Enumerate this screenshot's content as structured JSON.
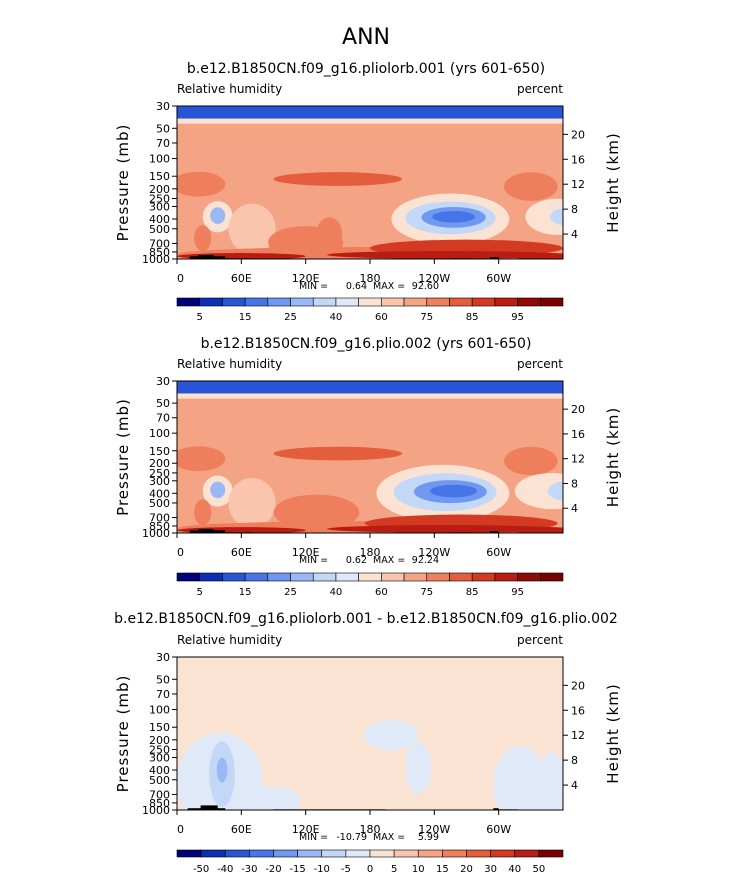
{
  "figure": {
    "title": "ANN"
  },
  "chart_data": [
    {
      "type": "heatmap",
      "title": "b.e12.B1850CN.f09_g16.pliolorb.001 (yrs 601-650)",
      "left_subtitle": "Relative humidity",
      "right_subtitle": "percent",
      "xlabel": "",
      "ylabel": "Pressure (mb)",
      "ylabel_right": "Height (km)",
      "x_ticks": [
        "0",
        "60E",
        "120E",
        "180",
        "120W",
        "60W"
      ],
      "x_tick_values": [
        0,
        60,
        120,
        180,
        240,
        300
      ],
      "xlim": [
        0,
        360
      ],
      "y_ticks": [
        "30",
        "50",
        "70",
        "100",
        "150",
        "200",
        "250",
        "300",
        "400",
        "500",
        "700",
        "850",
        "1000"
      ],
      "y_tick_values": [
        30,
        50,
        70,
        100,
        150,
        200,
        250,
        300,
        400,
        500,
        700,
        850,
        1000
      ],
      "ylim": [
        30,
        1000
      ],
      "height_ticks": [
        "20",
        "16",
        "12",
        "8",
        "4"
      ],
      "height_tick_values": [
        20,
        16,
        12,
        8,
        4
      ],
      "min_label": "MIN =",
      "min_value": "0.64",
      "max_label": "MAX =",
      "max_value": "92.60",
      "colorbar_labels": [
        "5",
        "15",
        "25",
        "40",
        "60",
        "75",
        "85",
        "95"
      ],
      "colorbar_levels": [
        3,
        5,
        10,
        15,
        20,
        25,
        30,
        40,
        50,
        60,
        70,
        75,
        80,
        85,
        90,
        95
      ],
      "colorbar_colors": [
        "#00007a",
        "#0d2fb4",
        "#2855d6",
        "#4775e8",
        "#6f99f0",
        "#9ab8f5",
        "#c3d7f7",
        "#dfe9f8",
        "#fbe3d4",
        "#f9c6ad",
        "#f4a384",
        "#ef7e5d",
        "#e45d3d",
        "#d43a22",
        "#b81c12",
        "#8c0a08",
        "#7a0000"
      ],
      "features": [
        {
          "kind": "fill",
          "value": 60,
          "lon": 180,
          "p": 500,
          "rlon": 250,
          "rp": 700
        },
        {
          "kind": "blob",
          "value": 65,
          "lon": 150,
          "p": 200,
          "rlon": 110,
          "rp": 60
        },
        {
          "kind": "blob",
          "value": 75,
          "lon": 150,
          "p": 160,
          "rlon": 60,
          "rp": 25
        },
        {
          "kind": "blob",
          "value": 70,
          "lon": 20,
          "p": 180,
          "rlon": 25,
          "rp": 50
        },
        {
          "kind": "blob",
          "value": 70,
          "lon": 330,
          "p": 190,
          "rlon": 25,
          "rp": 60
        },
        {
          "kind": "blob",
          "value": 40,
          "lon": 255,
          "p": 400,
          "rlon": 55,
          "rp": 210
        },
        {
          "kind": "blob",
          "value": 25,
          "lon": 255,
          "p": 390,
          "rlon": 42,
          "rp": 140
        },
        {
          "kind": "blob",
          "value": 15,
          "lon": 258,
          "p": 385,
          "rlon": 30,
          "rp": 90
        },
        {
          "kind": "blob",
          "value": 10,
          "lon": 258,
          "p": 380,
          "rlon": 20,
          "rp": 50
        },
        {
          "kind": "blob",
          "value": 40,
          "lon": 38,
          "p": 380,
          "rlon": 14,
          "rp": 130
        },
        {
          "kind": "blob",
          "value": 20,
          "lon": 38,
          "p": 370,
          "rlon": 7,
          "rp": 70
        },
        {
          "kind": "blob",
          "value": 40,
          "lon": 355,
          "p": 380,
          "rlon": 30,
          "rp": 150
        },
        {
          "kind": "blob",
          "value": 25,
          "lon": 360,
          "p": 380,
          "rlon": 12,
          "rp": 70
        },
        {
          "kind": "blob",
          "value": 50,
          "lon": 70,
          "p": 500,
          "rlon": 22,
          "rp": 260
        },
        {
          "kind": "blob",
          "value": 70,
          "lon": 120,
          "p": 680,
          "rlon": 35,
          "rp": 240
        },
        {
          "kind": "blob",
          "value": 70,
          "lon": 142,
          "p": 560,
          "rlon": 12,
          "rp": 200
        },
        {
          "kind": "blob",
          "value": 70,
          "lon": 24,
          "p": 620,
          "rlon": 8,
          "rp": 180
        },
        {
          "kind": "blob",
          "value": 70,
          "lon": 170,
          "p": 900,
          "rlon": 170,
          "rp": 150
        },
        {
          "kind": "blob",
          "value": 80,
          "lon": 270,
          "p": 780,
          "rlon": 90,
          "rp": 150
        },
        {
          "kind": "blob",
          "value": 85,
          "lon": 60,
          "p": 940,
          "rlon": 60,
          "rp": 70
        },
        {
          "kind": "blob",
          "value": 85,
          "lon": 250,
          "p": 910,
          "rlon": 110,
          "rp": 80
        },
        {
          "kind": "blob",
          "value": 85,
          "lon": 340,
          "p": 935,
          "rlon": 30,
          "rp": 70
        },
        {
          "kind": "band",
          "value": 40,
          "p0": 30,
          "p1": 45
        },
        {
          "kind": "band",
          "value": 5,
          "p0": 30,
          "p1": 40
        }
      ],
      "topography": [
        {
          "lon0": 12,
          "lon1": 45,
          "p": 940
        },
        {
          "lon0": 20,
          "lon1": 34,
          "p": 910
        },
        {
          "lon0": 45,
          "lon1": 70,
          "p": 985
        },
        {
          "lon0": 90,
          "lon1": 195,
          "p": 990
        },
        {
          "lon0": 255,
          "lon1": 275,
          "p": 985
        },
        {
          "lon0": 292,
          "lon1": 300,
          "p": 960
        },
        {
          "lon0": 300,
          "lon1": 318,
          "p": 990
        }
      ]
    },
    {
      "type": "heatmap",
      "title": "b.e12.B1850CN.f09_g16.plio.002 (yrs 601-650)",
      "left_subtitle": "Relative humidity",
      "right_subtitle": "percent",
      "xlabel": "",
      "ylabel": "Pressure (mb)",
      "ylabel_right": "Height (km)",
      "x_ticks": [
        "0",
        "60E",
        "120E",
        "180",
        "120W",
        "60W"
      ],
      "x_tick_values": [
        0,
        60,
        120,
        180,
        240,
        300
      ],
      "xlim": [
        0,
        360
      ],
      "y_ticks": [
        "30",
        "50",
        "70",
        "100",
        "150",
        "200",
        "250",
        "300",
        "400",
        "500",
        "700",
        "850",
        "1000"
      ],
      "y_tick_values": [
        30,
        50,
        70,
        100,
        150,
        200,
        250,
        300,
        400,
        500,
        700,
        850,
        1000
      ],
      "ylim": [
        30,
        1000
      ],
      "height_ticks": [
        "20",
        "16",
        "12",
        "8",
        "4"
      ],
      "height_tick_values": [
        20,
        16,
        12,
        8,
        4
      ],
      "min_label": "MIN =",
      "min_value": "0.62",
      "max_label": "MAX =",
      "max_value": "92.24",
      "colorbar_labels": [
        "5",
        "15",
        "25",
        "40",
        "60",
        "75",
        "85",
        "95"
      ],
      "colorbar_levels": [
        3,
        5,
        10,
        15,
        20,
        25,
        30,
        40,
        50,
        60,
        70,
        75,
        80,
        85,
        90,
        95
      ],
      "colorbar_colors": [
        "#00007a",
        "#0d2fb4",
        "#2855d6",
        "#4775e8",
        "#6f99f0",
        "#9ab8f5",
        "#c3d7f7",
        "#dfe9f8",
        "#fbe3d4",
        "#f9c6ad",
        "#f4a384",
        "#ef7e5d",
        "#e45d3d",
        "#d43a22",
        "#b81c12",
        "#8c0a08",
        "#7a0000"
      ],
      "features": [
        {
          "kind": "fill",
          "value": 60,
          "lon": 180,
          "p": 500,
          "rlon": 250,
          "rp": 700
        },
        {
          "kind": "blob",
          "value": 65,
          "lon": 150,
          "p": 200,
          "rlon": 110,
          "rp": 60
        },
        {
          "kind": "blob",
          "value": 75,
          "lon": 150,
          "p": 160,
          "rlon": 60,
          "rp": 25
        },
        {
          "kind": "blob",
          "value": 70,
          "lon": 20,
          "p": 180,
          "rlon": 25,
          "rp": 50
        },
        {
          "kind": "blob",
          "value": 70,
          "lon": 330,
          "p": 190,
          "rlon": 25,
          "rp": 60
        },
        {
          "kind": "blob",
          "value": 40,
          "lon": 248,
          "p": 400,
          "rlon": 62,
          "rp": 230
        },
        {
          "kind": "blob",
          "value": 25,
          "lon": 250,
          "p": 390,
          "rlon": 48,
          "rp": 160
        },
        {
          "kind": "blob",
          "value": 15,
          "lon": 255,
          "p": 385,
          "rlon": 34,
          "rp": 100
        },
        {
          "kind": "blob",
          "value": 10,
          "lon": 258,
          "p": 380,
          "rlon": 22,
          "rp": 55
        },
        {
          "kind": "blob",
          "value": 40,
          "lon": 38,
          "p": 380,
          "rlon": 14,
          "rp": 130
        },
        {
          "kind": "blob",
          "value": 20,
          "lon": 38,
          "p": 370,
          "rlon": 7,
          "rp": 70
        },
        {
          "kind": "blob",
          "value": 40,
          "lon": 350,
          "p": 380,
          "rlon": 35,
          "rp": 150
        },
        {
          "kind": "blob",
          "value": 25,
          "lon": 360,
          "p": 380,
          "rlon": 14,
          "rp": 80
        },
        {
          "kind": "blob",
          "value": 50,
          "lon": 70,
          "p": 500,
          "rlon": 22,
          "rp": 260
        },
        {
          "kind": "blob",
          "value": 70,
          "lon": 130,
          "p": 620,
          "rlon": 40,
          "rp": 240
        },
        {
          "kind": "blob",
          "value": 70,
          "lon": 24,
          "p": 620,
          "rlon": 8,
          "rp": 180
        },
        {
          "kind": "blob",
          "value": 70,
          "lon": 170,
          "p": 900,
          "rlon": 170,
          "rp": 150
        },
        {
          "kind": "blob",
          "value": 80,
          "lon": 265,
          "p": 800,
          "rlon": 90,
          "rp": 160
        },
        {
          "kind": "blob",
          "value": 85,
          "lon": 60,
          "p": 940,
          "rlon": 60,
          "rp": 70
        },
        {
          "kind": "blob",
          "value": 85,
          "lon": 250,
          "p": 910,
          "rlon": 110,
          "rp": 80
        },
        {
          "kind": "blob",
          "value": 85,
          "lon": 340,
          "p": 935,
          "rlon": 30,
          "rp": 70
        },
        {
          "kind": "band",
          "value": 40,
          "p0": 30,
          "p1": 45
        },
        {
          "kind": "band",
          "value": 5,
          "p0": 30,
          "p1": 40
        }
      ],
      "topography": [
        {
          "lon0": 12,
          "lon1": 45,
          "p": 940
        },
        {
          "lon0": 20,
          "lon1": 34,
          "p": 910
        },
        {
          "lon0": 45,
          "lon1": 70,
          "p": 985
        },
        {
          "lon0": 90,
          "lon1": 195,
          "p": 990
        },
        {
          "lon0": 255,
          "lon1": 275,
          "p": 985
        },
        {
          "lon0": 292,
          "lon1": 300,
          "p": 960
        },
        {
          "lon0": 300,
          "lon1": 318,
          "p": 990
        }
      ]
    },
    {
      "type": "heatmap",
      "title": "b.e12.B1850CN.f09_g16.pliolorb.001 - b.e12.B1850CN.f09_g16.plio.002",
      "left_subtitle": "Relative humidity",
      "right_subtitle": "percent",
      "xlabel": "",
      "ylabel": "Pressure (mb)",
      "ylabel_right": "Height (km)",
      "x_ticks": [
        "0",
        "60E",
        "120E",
        "180",
        "120W",
        "60W"
      ],
      "x_tick_values": [
        0,
        60,
        120,
        180,
        240,
        300
      ],
      "xlim": [
        0,
        360
      ],
      "y_ticks": [
        "30",
        "50",
        "70",
        "100",
        "150",
        "200",
        "250",
        "300",
        "400",
        "500",
        "700",
        "850",
        "1000"
      ],
      "y_tick_values": [
        30,
        50,
        70,
        100,
        150,
        200,
        250,
        300,
        400,
        500,
        700,
        850,
        1000
      ],
      "ylim": [
        30,
        1000
      ],
      "height_ticks": [
        "20",
        "16",
        "12",
        "8",
        "4"
      ],
      "height_tick_values": [
        20,
        16,
        12,
        8,
        4
      ],
      "min_label": "MIN =",
      "min_value": "-10.79",
      "max_label": "MAX =",
      "max_value": "5.99",
      "colorbar_labels": [
        "-50",
        "-40",
        "-30",
        "-20",
        "-15",
        "-10",
        "-5",
        "0",
        "5",
        "10",
        "15",
        "20",
        "30",
        "40",
        "50"
      ],
      "colorbar_levels": [
        -50,
        -40,
        -30,
        -20,
        -15,
        -10,
        -5,
        0,
        5,
        10,
        15,
        20,
        30,
        40,
        50
      ],
      "colorbar_colors": [
        "#00007a",
        "#0d2fb4",
        "#2855d6",
        "#4775e8",
        "#6f99f0",
        "#9ab8f5",
        "#c3d7f7",
        "#dfe9f8",
        "#fbe3d4",
        "#f9c6ad",
        "#f4a384",
        "#ef7e5d",
        "#e45d3d",
        "#d43a22",
        "#b81c12",
        "#7a0000"
      ],
      "features": [
        {
          "kind": "fill",
          "value": 2,
          "lon": 180,
          "p": 500,
          "rlon": 250,
          "rp": 700
        },
        {
          "kind": "blob",
          "value": -2,
          "lon": 40,
          "p": 520,
          "rlon": 40,
          "rp": 420
        },
        {
          "kind": "blob",
          "value": -2,
          "lon": 90,
          "p": 800,
          "rlon": 25,
          "rp": 250
        },
        {
          "kind": "blob",
          "value": -2,
          "lon": 225,
          "p": 380,
          "rlon": 12,
          "rp": 200
        },
        {
          "kind": "blob",
          "value": -2,
          "lon": 320,
          "p": 560,
          "rlon": 25,
          "rp": 400
        },
        {
          "kind": "blob",
          "value": -2,
          "lon": 350,
          "p": 600,
          "rlon": 14,
          "rp": 400
        },
        {
          "kind": "blob",
          "value": -2,
          "lon": 200,
          "p": 180,
          "rlon": 25,
          "rp": 60
        },
        {
          "kind": "blob",
          "value": -6,
          "lon": 42,
          "p": 440,
          "rlon": 12,
          "rp": 280
        },
        {
          "kind": "blob",
          "value": -12,
          "lon": 42,
          "p": 400,
          "rlon": 5,
          "rp": 110
        }
      ],
      "topography": [
        {
          "lon0": 10,
          "lon1": 45,
          "p": 960
        },
        {
          "lon0": 22,
          "lon1": 38,
          "p": 900
        },
        {
          "lon0": 90,
          "lon1": 195,
          "p": 985
        },
        {
          "lon0": 295,
          "lon1": 300,
          "p": 960
        },
        {
          "lon0": 300,
          "lon1": 318,
          "p": 985
        }
      ]
    }
  ]
}
